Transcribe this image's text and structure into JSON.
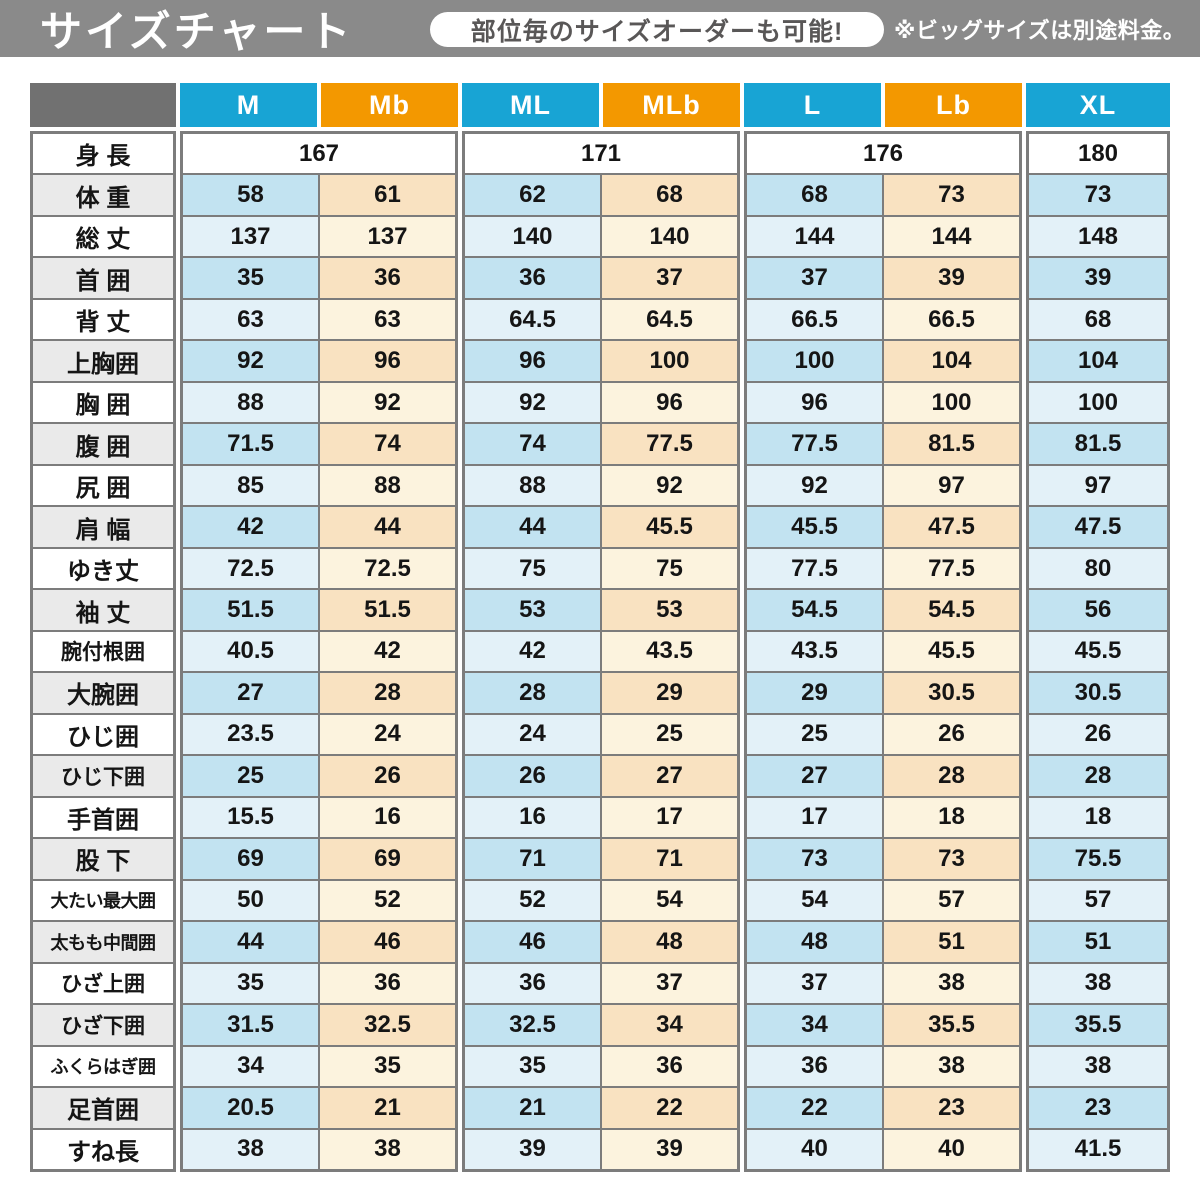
{
  "topbar": {
    "title": "サイズチャート",
    "badge": "部位毎のサイズオーダーも可能!",
    "note": "※ビッグサイズは別途料金。"
  },
  "colors": {
    "bar": "#8A8A8A",
    "corner": "#717171",
    "cyan": "#18A4D4",
    "orange": "#F39800",
    "border": "#7C7C7C",
    "blue_strong": "#C2E3F1",
    "blue_light": "#E3F1F8",
    "cream_strong": "#F9E2C1",
    "cream_light": "#FCF3DE",
    "label_gray": "#EAEAEA",
    "pill_text": "#595757"
  },
  "chart_data": {
    "type": "table",
    "title": "サイズチャート",
    "column_headers": [
      "M",
      "Mb",
      "ML",
      "MLb",
      "L",
      "Lb",
      "XL"
    ],
    "column_groups": [
      [
        "M",
        "Mb"
      ],
      [
        "ML",
        "MLb"
      ],
      [
        "L",
        "Lb"
      ],
      [
        "XL"
      ]
    ],
    "height_row": {
      "label": "身 長",
      "group_values": [
        167,
        171,
        176,
        180
      ]
    },
    "rows": [
      {
        "label": "体 重",
        "values": [
          58,
          61,
          62,
          68,
          68,
          73,
          73
        ]
      },
      {
        "label": "総 丈",
        "values": [
          137,
          137,
          140,
          140,
          144,
          144,
          148
        ]
      },
      {
        "label": "首 囲",
        "values": [
          35,
          36,
          36,
          37,
          37,
          39,
          39
        ]
      },
      {
        "label": "背 丈",
        "values": [
          63,
          63,
          64.5,
          64.5,
          66.5,
          66.5,
          68
        ]
      },
      {
        "label": "上胸囲",
        "values": [
          92,
          96,
          96,
          100,
          100,
          104,
          104
        ]
      },
      {
        "label": "胸 囲",
        "values": [
          88,
          92,
          92,
          96,
          96,
          100,
          100
        ]
      },
      {
        "label": "腹 囲",
        "values": [
          71.5,
          74,
          74,
          77.5,
          77.5,
          81.5,
          81.5
        ]
      },
      {
        "label": "尻 囲",
        "values": [
          85,
          88,
          88,
          92,
          92,
          97,
          97
        ]
      },
      {
        "label": "肩 幅",
        "values": [
          42,
          44,
          44,
          45.5,
          45.5,
          47.5,
          47.5
        ]
      },
      {
        "label": "ゆき丈",
        "values": [
          72.5,
          72.5,
          75,
          75,
          77.5,
          77.5,
          80
        ]
      },
      {
        "label": "袖 丈",
        "values": [
          51.5,
          51.5,
          53,
          53,
          54.5,
          54.5,
          56
        ]
      },
      {
        "label": "腕付根囲",
        "values": [
          40.5,
          42,
          42,
          43.5,
          43.5,
          45.5,
          45.5
        ]
      },
      {
        "label": "大腕囲",
        "values": [
          27,
          28,
          28,
          29,
          29,
          30.5,
          30.5
        ]
      },
      {
        "label": "ひじ囲",
        "values": [
          23.5,
          24,
          24,
          25,
          25,
          26,
          26
        ]
      },
      {
        "label": "ひじ下囲",
        "values": [
          25,
          26,
          26,
          27,
          27,
          28,
          28
        ]
      },
      {
        "label": "手首囲",
        "values": [
          15.5,
          16,
          16,
          17,
          17,
          18,
          18
        ]
      },
      {
        "label": "股 下",
        "values": [
          69,
          69,
          71,
          71,
          73,
          73,
          75.5
        ]
      },
      {
        "label": "大たい最大囲",
        "values": [
          50,
          52,
          52,
          54,
          54,
          57,
          57
        ]
      },
      {
        "label": "太もも中間囲",
        "values": [
          44,
          46,
          46,
          48,
          48,
          51,
          51
        ]
      },
      {
        "label": "ひざ上囲",
        "values": [
          35,
          36,
          36,
          37,
          37,
          38,
          38
        ]
      },
      {
        "label": "ひざ下囲",
        "values": [
          31.5,
          32.5,
          32.5,
          34,
          34,
          35.5,
          35.5
        ]
      },
      {
        "label": "ふくらはぎ囲",
        "values": [
          34,
          35,
          35,
          36,
          36,
          38,
          38
        ]
      },
      {
        "label": "足首囲",
        "values": [
          20.5,
          21,
          21,
          22,
          22,
          23,
          23
        ]
      },
      {
        "label": "すね長",
        "values": [
          38,
          38,
          39,
          39,
          40,
          40,
          41.5
        ]
      }
    ]
  }
}
